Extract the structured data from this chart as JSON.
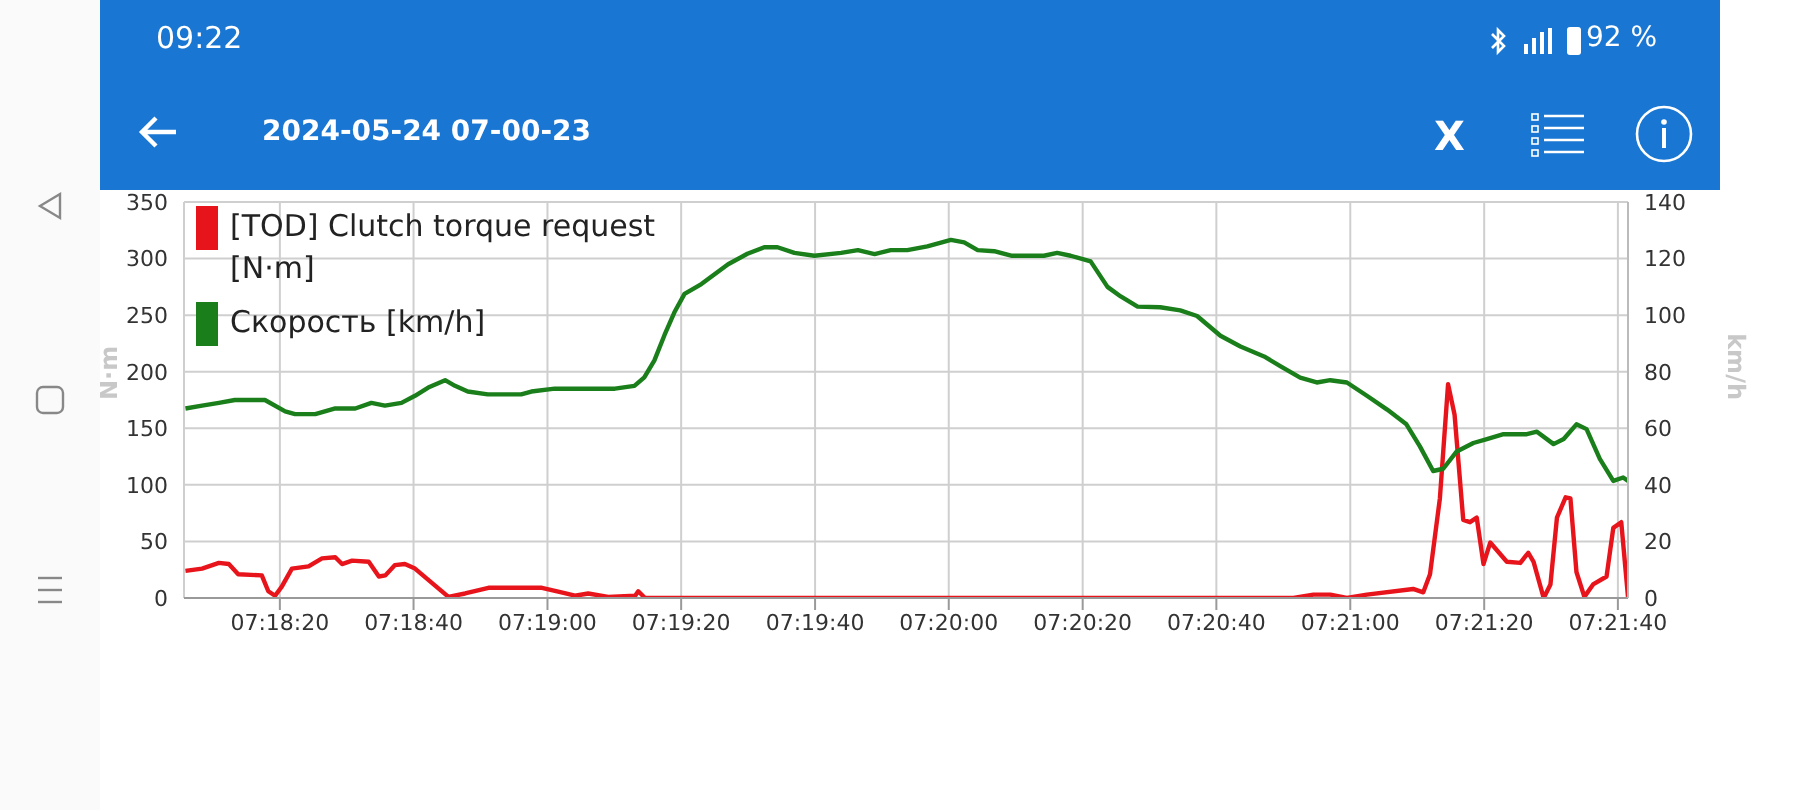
{
  "chart_data": {
    "type": "line",
    "title": "2024-05-24 07-00-23",
    "annotations": [
      "09:22",
      "92 %",
      "X"
    ],
    "ylabel": "N·m",
    "y2label": "km/h",
    "xlim": [
      7.30158,
      7.36153
    ],
    "xticks": [
      {
        "value": 7.30556,
        "label": "07:18:20"
      },
      {
        "value": 7.31111,
        "label": "07:18:40"
      },
      {
        "value": 7.31667,
        "label": "07:19:00"
      },
      {
        "value": 7.32222,
        "label": "07:19:20"
      },
      {
        "value": 7.32778,
        "label": "07:19:40"
      },
      {
        "value": 7.33333,
        "label": "07:20:00"
      },
      {
        "value": 7.33889,
        "label": "07:20:20"
      },
      {
        "value": 7.34444,
        "label": "07:20:40"
      },
      {
        "value": 7.35,
        "label": "07:21:00"
      },
      {
        "value": 7.35556,
        "label": "07:21:20"
      },
      {
        "value": 7.36111,
        "label": "07:21:40"
      }
    ],
    "ylim": [
      0,
      350
    ],
    "yticks": [
      0,
      50,
      100,
      150,
      200,
      250,
      300,
      350
    ],
    "y2lim": [
      0,
      140
    ],
    "y2ticks": [
      0,
      20,
      40,
      60,
      80,
      100,
      120,
      140
    ],
    "grid": true,
    "legend": "top left",
    "marker": "none",
    "line_style": "solid",
    "series": [
      {
        "name": "[TOD] Clutch torque request [N·m]",
        "color": "#e8141b",
        "x": [
          7.30164,
          7.30233,
          7.30303,
          7.30344,
          7.30383,
          7.30481,
          7.30508,
          7.30536,
          7.30564,
          7.30606,
          7.30675,
          7.30731,
          7.30786,
          7.30814,
          7.30856,
          7.30925,
          7.30967,
          7.30994,
          7.31033,
          7.31075,
          7.31117,
          7.31256,
          7.31325,
          7.31422,
          7.31644,
          7.31725,
          7.31781,
          7.31836,
          7.31919,
          7.32031,
          7.32044,
          7.32072,
          7.34764,
          7.34847,
          7.34917,
          7.34986,
          7.35069,
          7.35261,
          7.35303,
          7.35331,
          7.35372,
          7.35406,
          7.35433,
          7.35469,
          7.35497,
          7.35525,
          7.35553,
          7.35581,
          7.3565,
          7.35706,
          7.35739,
          7.35761,
          7.35803,
          7.35831,
          7.35858,
          7.35894,
          7.35914,
          7.35939,
          7.35972,
          7.36008,
          7.36064,
          7.36092,
          7.36125,
          7.36153
        ],
        "values": [
          24,
          26,
          31,
          30,
          21,
          20,
          6,
          2,
          10,
          26,
          28,
          35,
          36,
          30,
          33,
          32,
          19,
          20,
          29,
          30,
          26,
          1,
          4,
          9,
          9,
          5,
          2,
          4,
          1,
          2,
          6,
          0,
          0,
          3,
          3,
          0,
          3,
          8,
          5,
          21,
          88,
          189,
          162,
          69,
          67,
          71,
          30,
          49,
          32,
          31,
          40,
          32,
          0,
          12,
          71,
          89,
          88,
          23,
          1,
          12,
          19,
          62,
          67,
          1
        ]
      },
      {
        "name": "Скорость [km/h]",
        "color": "#1a7f1a",
        "axis": "y2",
        "x": [
          7.30164,
          7.30233,
          7.30303,
          7.30369,
          7.30494,
          7.30578,
          7.30619,
          7.30703,
          7.30786,
          7.30869,
          7.30936,
          7.30992,
          7.31061,
          7.31117,
          7.31172,
          7.31242,
          7.31283,
          7.31336,
          7.31419,
          7.31558,
          7.316,
          7.31697,
          7.31947,
          7.32028,
          7.32069,
          7.32111,
          7.32153,
          7.32194,
          7.32236,
          7.32306,
          7.32417,
          7.32497,
          7.32567,
          7.32622,
          7.32692,
          7.32775,
          7.32886,
          7.32956,
          7.33025,
          7.33092,
          7.33161,
          7.33244,
          7.33342,
          7.33397,
          7.33453,
          7.33522,
          7.33592,
          7.33728,
          7.33783,
          7.33839,
          7.33922,
          7.33992,
          7.34047,
          7.34117,
          7.34211,
          7.34294,
          7.34364,
          7.34461,
          7.34544,
          7.34642,
          7.34711,
          7.34792,
          7.34861,
          7.34917,
          7.34986,
          7.35069,
          7.35153,
          7.35233,
          7.35289,
          7.35344,
          7.35386,
          7.35442,
          7.35511,
          7.35567,
          7.35636,
          7.35733,
          7.35775,
          7.35844,
          7.35886,
          7.35939,
          7.35981,
          7.36036,
          7.36092,
          7.36133,
          7.36153
        ],
        "values": [
          67,
          68,
          69,
          70,
          70,
          66,
          65,
          65,
          67,
          67,
          69,
          68,
          69,
          71.5,
          74.4,
          77,
          75,
          73,
          72,
          72,
          73,
          74,
          74,
          75,
          78,
          84,
          93,
          101,
          107.5,
          111,
          118,
          121.7,
          124,
          124,
          122,
          121,
          122,
          123,
          121.6,
          123,
          123,
          124.3,
          126.6,
          125.7,
          123,
          122.6,
          121,
          121,
          122,
          121,
          119,
          110,
          106.6,
          103,
          102.8,
          101.7,
          99.7,
          92.7,
          88.9,
          85.4,
          81.9,
          77.9,
          76.2,
          77,
          76.2,
          71.5,
          66.6,
          61.4,
          53.6,
          44.9,
          45.7,
          51.8,
          54.8,
          56.2,
          57.9,
          57.9,
          58.8,
          54.4,
          56.2,
          61.4,
          59.7,
          49.2,
          41.4,
          42.6,
          41.4
        ]
      }
    ]
  }
}
